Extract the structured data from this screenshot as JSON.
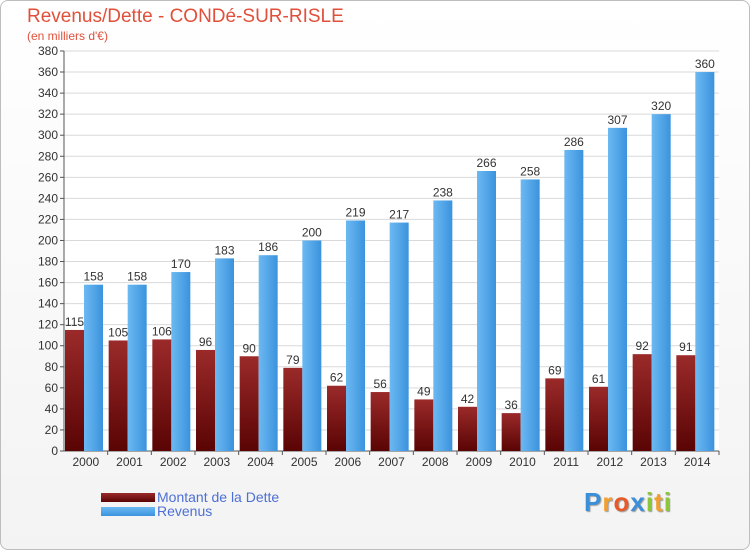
{
  "header": {
    "title": "Revenus/Dette - CONDé-SUR-RISLE",
    "subtitle": "(en milliers d'€)"
  },
  "legend": [
    {
      "label": "Montant de la Dette",
      "color": "#6e0b0b"
    },
    {
      "label": "Revenus",
      "color": "#4aa0e6"
    }
  ],
  "logo": {
    "text": "Proxiti",
    "letters": [
      {
        "ch": "P",
        "color": "#3a8fd8"
      },
      {
        "ch": "r",
        "color": "#f0a030"
      },
      {
        "ch": "o",
        "color": "#e65a2a"
      },
      {
        "ch": "x",
        "color": "#3a8fd8"
      },
      {
        "ch": "i",
        "color": "#8cc63f"
      },
      {
        "ch": "t",
        "color": "#f0a030"
      },
      {
        "ch": "i",
        "color": "#8cc63f"
      }
    ]
  },
  "chart_data": {
    "type": "bar",
    "categories": [
      "2000",
      "2001",
      "2002",
      "2003",
      "2004",
      "2005",
      "2006",
      "2007",
      "2008",
      "2009",
      "2010",
      "2011",
      "2012",
      "2013",
      "2014"
    ],
    "series": [
      {
        "name": "Montant de la Dette",
        "color": "#6e0b0b",
        "values": [
          115,
          105,
          106,
          96,
          90,
          79,
          62,
          56,
          49,
          42,
          36,
          69,
          61,
          92,
          91
        ]
      },
      {
        "name": "Revenus",
        "color": "#4aa0e6",
        "values": [
          158,
          158,
          170,
          183,
          186,
          200,
          219,
          217,
          238,
          266,
          258,
          286,
          307,
          320,
          360
        ]
      }
    ],
    "ylim": [
      0,
      380
    ],
    "ytick_step": 20,
    "yticks": [
      "0",
      "20",
      "40",
      "60",
      "80",
      "100",
      "120",
      "140",
      "160",
      "180",
      "200",
      "220",
      "240",
      "260",
      "280",
      "300",
      "320",
      "340",
      "360",
      "380"
    ],
    "grid": true,
    "legend_position": "bottom-left"
  }
}
